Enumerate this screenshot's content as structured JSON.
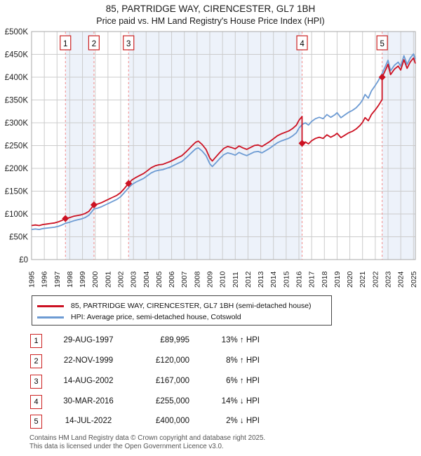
{
  "header": {
    "title": "85, PARTRIDGE WAY, CIRENCESTER, GL7 1BH",
    "subtitle": "Price paid vs. HM Land Registry's House Price Index (HPI)"
  },
  "legend": {
    "items": [
      {
        "label": "85, PARTRIDGE WAY, CIRENCESTER, GL7 1BH (semi-detached house)"
      },
      {
        "label": "HPI: Average price, semi-detached house, Cotswold"
      }
    ]
  },
  "sales_table": {
    "rows": [
      {
        "n": "1",
        "date": "29-AUG-1997",
        "price": "£89,995",
        "vs_hpi": "13% ↑ HPI"
      },
      {
        "n": "2",
        "date": "22-NOV-1999",
        "price": "£120,000",
        "vs_hpi": "8% ↑ HPI"
      },
      {
        "n": "3",
        "date": "14-AUG-2002",
        "price": "£167,000",
        "vs_hpi": "6% ↑ HPI"
      },
      {
        "n": "4",
        "date": "30-MAR-2016",
        "price": "£255,000",
        "vs_hpi": "14% ↓ HPI"
      },
      {
        "n": "5",
        "date": "14-JUL-2022",
        "price": "£400,000",
        "vs_hpi": "2% ↓ HPI"
      }
    ]
  },
  "footer": {
    "line1": "Contains HM Land Registry data © Crown copyright and database right 2025.",
    "line2": "This data is licensed under the Open Government Licence v3.0."
  },
  "chart_data": {
    "type": "line",
    "title": "85, PARTRIDGE WAY, CIRENCESTER, GL7 1BH — Price paid vs. HPI",
    "y_unit": "GBP thousands",
    "x_range": [
      1995,
      2025.15
    ],
    "y_range_thousands": [
      0,
      500
    ],
    "x_ticks": [
      1995,
      1996,
      1997,
      1998,
      1999,
      2000,
      2001,
      2002,
      2003,
      2004,
      2005,
      2006,
      2007,
      2008,
      2009,
      2010,
      2011,
      2012,
      2013,
      2014,
      2015,
      2016,
      2017,
      2018,
      2019,
      2020,
      2021,
      2022,
      2023,
      2024,
      2025
    ],
    "y_ticks": [
      {
        "value": 0,
        "label": "£0"
      },
      {
        "value": 50,
        "label": "£50K"
      },
      {
        "value": 100,
        "label": "£100K"
      },
      {
        "value": 150,
        "label": "£150K"
      },
      {
        "value": 200,
        "label": "£200K"
      },
      {
        "value": 250,
        "label": "£250K"
      },
      {
        "value": 300,
        "label": "£300K"
      },
      {
        "value": 350,
        "label": "£350K"
      },
      {
        "value": 400,
        "label": "£400K"
      },
      {
        "value": 450,
        "label": "£450K"
      },
      {
        "value": 500,
        "label": "£500K"
      }
    ],
    "colors": {
      "property": "#cc1122",
      "hpi": "#6d9bd3",
      "band": "#edf2fa",
      "grid": "#cccccc",
      "frame": "#aaaaaa",
      "sale_line": "#f28c8c",
      "sale_box": "#cc2222"
    },
    "shaded_bands_x": [
      [
        1997.66,
        1999.9
      ],
      [
        2002.62,
        2016.25
      ],
      [
        2022.54,
        2025.15
      ]
    ],
    "sales": [
      {
        "n": "1",
        "x": 1997.66,
        "price_thousands": 90,
        "date": "29-AUG-1997"
      },
      {
        "n": "2",
        "x": 1999.9,
        "price_thousands": 120,
        "date": "22-NOV-1999"
      },
      {
        "n": "3",
        "x": 2002.62,
        "price_thousands": 167,
        "date": "14-AUG-2002"
      },
      {
        "n": "4",
        "x": 2016.25,
        "price_thousands": 255,
        "date": "30-MAR-2016"
      },
      {
        "n": "5",
        "x": 2022.54,
        "price_thousands": 400,
        "date": "14-JUL-2022"
      }
    ],
    "series": [
      {
        "name": "property",
        "legend": "85, PARTRIDGE WAY, CIRENCESTER, GL7 1BH (semi-detached house)",
        "color": "#cc1122",
        "points": [
          [
            1995.0,
            74.6
          ],
          [
            1995.3,
            75.8
          ],
          [
            1995.6,
            74.6
          ],
          [
            1995.9,
            76.9
          ],
          [
            1996.2,
            78.0
          ],
          [
            1996.5,
            79.2
          ],
          [
            1996.8,
            80.3
          ],
          [
            1997.1,
            82.6
          ],
          [
            1997.4,
            86.0
          ],
          [
            1997.66,
            90.0
          ],
          [
            1998.0,
            92.1
          ],
          [
            1998.3,
            94.9
          ],
          [
            1998.6,
            96.6
          ],
          [
            1998.9,
            98.2
          ],
          [
            1999.2,
            100.9
          ],
          [
            1999.5,
            105.7
          ],
          [
            1999.9,
            120.0
          ],
          [
            2000.2,
            121.9
          ],
          [
            2000.5,
            124.9
          ],
          [
            2000.8,
            128.9
          ],
          [
            2001.1,
            132.9
          ],
          [
            2001.4,
            136.9
          ],
          [
            2001.7,
            140.9
          ],
          [
            2002.0,
            146.9
          ],
          [
            2002.3,
            156.2
          ],
          [
            2002.62,
            167.0
          ],
          [
            2002.9,
            174.9
          ],
          [
            2003.2,
            180.2
          ],
          [
            2003.5,
            184.4
          ],
          [
            2003.8,
            188.7
          ],
          [
            2004.1,
            195.0
          ],
          [
            2004.4,
            201.4
          ],
          [
            2004.7,
            205.6
          ],
          [
            2005.0,
            207.8
          ],
          [
            2005.3,
            208.8
          ],
          [
            2005.6,
            212.0
          ],
          [
            2005.9,
            215.2
          ],
          [
            2006.2,
            219.4
          ],
          [
            2006.5,
            223.7
          ],
          [
            2006.8,
            227.9
          ],
          [
            2007.1,
            235.3
          ],
          [
            2007.4,
            243.8
          ],
          [
            2007.7,
            252.3
          ],
          [
            2007.9,
            257.6
          ],
          [
            2008.1,
            259.7
          ],
          [
            2008.4,
            252.3
          ],
          [
            2008.7,
            241.7
          ],
          [
            2009.0,
            222.6
          ],
          [
            2009.2,
            216.2
          ],
          [
            2009.5,
            225.8
          ],
          [
            2009.8,
            235.3
          ],
          [
            2010.1,
            243.8
          ],
          [
            2010.4,
            248.0
          ],
          [
            2010.7,
            245.9
          ],
          [
            2011.0,
            242.7
          ],
          [
            2011.3,
            249.1
          ],
          [
            2011.6,
            244.9
          ],
          [
            2011.9,
            241.7
          ],
          [
            2012.2,
            245.9
          ],
          [
            2012.5,
            250.2
          ],
          [
            2012.8,
            251.2
          ],
          [
            2013.1,
            248.0
          ],
          [
            2013.4,
            253.3
          ],
          [
            2013.7,
            258.6
          ],
          [
            2014.0,
            265.0
          ],
          [
            2014.3,
            271.4
          ],
          [
            2014.6,
            275.6
          ],
          [
            2014.9,
            278.8
          ],
          [
            2015.2,
            282.0
          ],
          [
            2015.5,
            287.3
          ],
          [
            2015.8,
            294.7
          ],
          [
            2016.0,
            305.3
          ],
          [
            2016.25,
            313.8
          ],
          [
            2016.25,
            255.0
          ],
          [
            2016.5,
            258.0
          ],
          [
            2016.75,
            253.7
          ],
          [
            2017.0,
            260.6
          ],
          [
            2017.3,
            265.7
          ],
          [
            2017.6,
            268.3
          ],
          [
            2017.9,
            265.7
          ],
          [
            2018.2,
            273.5
          ],
          [
            2018.5,
            268.3
          ],
          [
            2018.8,
            272.6
          ],
          [
            2019.0,
            276.9
          ],
          [
            2019.3,
            267.5
          ],
          [
            2019.6,
            272.6
          ],
          [
            2019.9,
            277.8
          ],
          [
            2020.2,
            281.2
          ],
          [
            2020.5,
            286.4
          ],
          [
            2020.8,
            294.1
          ],
          [
            2021.0,
            301.0
          ],
          [
            2021.2,
            311.3
          ],
          [
            2021.45,
            304.4
          ],
          [
            2021.7,
            318.2
          ],
          [
            2022.0,
            328.5
          ],
          [
            2022.25,
            338.0
          ],
          [
            2022.54,
            350.9
          ],
          [
            2022.54,
            400.0
          ],
          [
            2022.8,
            415.5
          ],
          [
            2023.0,
            428.3
          ],
          [
            2023.2,
            405.7
          ],
          [
            2023.5,
            417.5
          ],
          [
            2023.8,
            424.3
          ],
          [
            2024.0,
            415.5
          ],
          [
            2024.25,
            438.1
          ],
          [
            2024.5,
            419.4
          ],
          [
            2024.75,
            433.2
          ],
          [
            2025.0,
            442.0
          ],
          [
            2025.15,
            430.0
          ]
        ]
      },
      {
        "name": "hpi",
        "legend": "HPI: Average price, semi-detached house, Cotswold",
        "color": "#6d9bd3",
        "points": [
          [
            1995.0,
            66
          ],
          [
            1995.3,
            67
          ],
          [
            1995.6,
            66
          ],
          [
            1995.9,
            68
          ],
          [
            1996.2,
            69
          ],
          [
            1996.5,
            70
          ],
          [
            1996.8,
            71
          ],
          [
            1997.1,
            73
          ],
          [
            1997.4,
            76
          ],
          [
            1997.66,
            79.6
          ],
          [
            1998.0,
            82
          ],
          [
            1998.3,
            85
          ],
          [
            1998.6,
            87
          ],
          [
            1998.9,
            89
          ],
          [
            1999.2,
            92
          ],
          [
            1999.5,
            97
          ],
          [
            1999.9,
            111
          ],
          [
            2000.2,
            113
          ],
          [
            2000.5,
            116
          ],
          [
            2000.8,
            120
          ],
          [
            2001.1,
            124
          ],
          [
            2001.4,
            128
          ],
          [
            2001.7,
            132
          ],
          [
            2002.0,
            138
          ],
          [
            2002.3,
            147
          ],
          [
            2002.62,
            157.5
          ],
          [
            2002.9,
            165
          ],
          [
            2003.2,
            170
          ],
          [
            2003.5,
            174
          ],
          [
            2003.8,
            178
          ],
          [
            2004.1,
            184
          ],
          [
            2004.4,
            190
          ],
          [
            2004.7,
            194
          ],
          [
            2005.0,
            196
          ],
          [
            2005.3,
            197
          ],
          [
            2005.6,
            200
          ],
          [
            2005.9,
            203
          ],
          [
            2006.2,
            207
          ],
          [
            2006.5,
            211
          ],
          [
            2006.8,
            215
          ],
          [
            2007.1,
            222
          ],
          [
            2007.4,
            230
          ],
          [
            2007.7,
            238
          ],
          [
            2007.9,
            243
          ],
          [
            2008.1,
            245
          ],
          [
            2008.4,
            238
          ],
          [
            2008.7,
            228
          ],
          [
            2009.0,
            210
          ],
          [
            2009.2,
            204
          ],
          [
            2009.5,
            213
          ],
          [
            2009.8,
            222
          ],
          [
            2010.1,
            230
          ],
          [
            2010.4,
            234
          ],
          [
            2010.7,
            232
          ],
          [
            2011.0,
            229
          ],
          [
            2011.3,
            235
          ],
          [
            2011.6,
            231
          ],
          [
            2011.9,
            228
          ],
          [
            2012.2,
            232
          ],
          [
            2012.5,
            236
          ],
          [
            2012.8,
            237
          ],
          [
            2013.1,
            234
          ],
          [
            2013.4,
            239
          ],
          [
            2013.7,
            244
          ],
          [
            2014.0,
            250
          ],
          [
            2014.3,
            256
          ],
          [
            2014.6,
            260
          ],
          [
            2014.9,
            263
          ],
          [
            2015.2,
            266
          ],
          [
            2015.5,
            271
          ],
          [
            2015.8,
            278
          ],
          [
            2016.0,
            288
          ],
          [
            2016.25,
            296
          ],
          [
            2016.5,
            300
          ],
          [
            2016.75,
            295
          ],
          [
            2017.0,
            303
          ],
          [
            2017.3,
            309
          ],
          [
            2017.6,
            312
          ],
          [
            2017.9,
            309
          ],
          [
            2018.2,
            318
          ],
          [
            2018.5,
            312
          ],
          [
            2018.8,
            317
          ],
          [
            2019.0,
            322
          ],
          [
            2019.3,
            311
          ],
          [
            2019.6,
            317
          ],
          [
            2019.9,
            323
          ],
          [
            2020.2,
            327
          ],
          [
            2020.5,
            333
          ],
          [
            2020.8,
            342
          ],
          [
            2021.0,
            350
          ],
          [
            2021.2,
            362
          ],
          [
            2021.45,
            354
          ],
          [
            2021.7,
            370
          ],
          [
            2022.0,
            382
          ],
          [
            2022.25,
            393
          ],
          [
            2022.54,
            408
          ],
          [
            2022.8,
            424
          ],
          [
            2023.0,
            437
          ],
          [
            2023.2,
            414
          ],
          [
            2023.5,
            426
          ],
          [
            2023.8,
            433
          ],
          [
            2024.0,
            424
          ],
          [
            2024.25,
            447
          ],
          [
            2024.5,
            428
          ],
          [
            2024.75,
            442
          ],
          [
            2025.0,
            451
          ],
          [
            2025.15,
            439
          ]
        ]
      }
    ],
    "legend_position": "bottom",
    "grid": true
  }
}
